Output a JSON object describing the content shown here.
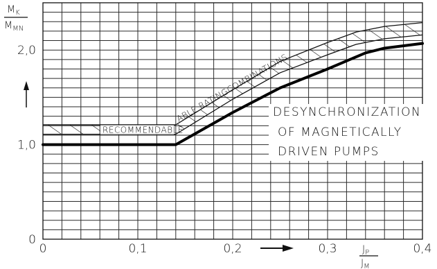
{
  "chart_data": {
    "type": "line",
    "title": "",
    "ylabel": {
      "numerator": "MK",
      "denominator": "MMN"
    },
    "xlabel": {
      "numerator": "JP",
      "denominator": "JM"
    },
    "x_ticks": [
      {
        "value": 0,
        "label": "0"
      },
      {
        "value": 0.1,
        "label": "0,1"
      },
      {
        "value": 0.2,
        "label": "0,2"
      },
      {
        "value": 0.3,
        "label": "0,3"
      },
      {
        "value": 0.4,
        "label": "0,4"
      }
    ],
    "y_ticks": [
      {
        "value": 0,
        "label": "0"
      },
      {
        "value": 1.0,
        "label": "1,0"
      },
      {
        "value": 2.0,
        "label": "2,0"
      }
    ],
    "xlim": [
      0,
      0.4
    ],
    "ylim": [
      0,
      2.5
    ],
    "grid": true,
    "series": [
      {
        "values": [
          [
            0,
            1.0
          ],
          [
            0.14,
            1.0
          ],
          [
            0.2,
            1.34
          ],
          [
            0.25,
            1.6
          ],
          [
            0.3,
            1.8
          ],
          [
            0.34,
            1.97
          ],
          [
            0.36,
            2.02
          ],
          [
            0.4,
            2.07
          ]
        ]
      }
    ],
    "recommended_band": {
      "upper": [
        [
          0,
          1.21
        ],
        [
          0.14,
          1.21
        ],
        [
          0.2,
          1.58
        ],
        [
          0.25,
          1.88
        ],
        [
          0.3,
          2.08
        ],
        [
          0.33,
          2.19
        ],
        [
          0.36,
          2.25
        ],
        [
          0.4,
          2.29
        ]
      ],
      "lower": [
        [
          0,
          1.11
        ],
        [
          0.14,
          1.11
        ],
        [
          0.2,
          1.48
        ],
        [
          0.25,
          1.76
        ],
        [
          0.3,
          1.95
        ],
        [
          0.33,
          2.06
        ],
        [
          0.36,
          2.12
        ],
        [
          0.4,
          2.16
        ]
      ]
    },
    "annotations": {
      "band_label_left": "RECOMMENDABLE",
      "band_label_right": "ABLE RATINGCOMBINATIONS",
      "title_lines": [
        "DESYNCHRONIZATION",
        "OF MAGNETICALLY",
        "DRIVEN PUMPS"
      ]
    }
  }
}
